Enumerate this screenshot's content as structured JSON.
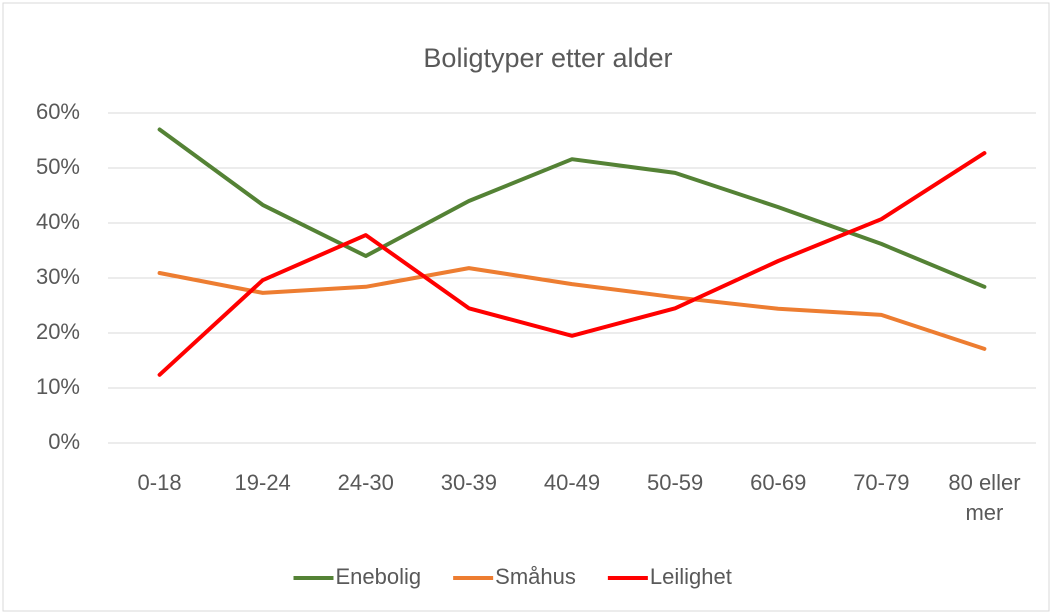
{
  "chart_data": {
    "type": "line",
    "title": "Boligtyper etter alder",
    "categories": [
      "0-18",
      "19-24",
      "24-30",
      "30-39",
      "40-49",
      "50-59",
      "60-69",
      "70-79",
      "80 eller mer"
    ],
    "series": [
      {
        "name": "Enebolig",
        "color": "#548235",
        "values": [
          57,
          43.3,
          34,
          44,
          51.6,
          49.1,
          42.9,
          36.2,
          28.4
        ]
      },
      {
        "name": "Småhus",
        "color": "#ed7d31",
        "values": [
          30.9,
          27.3,
          28.4,
          31.8,
          28.9,
          26.5,
          24.4,
          23.3,
          17.1
        ]
      },
      {
        "name": "Leilighet",
        "color": "#ff0000",
        "values": [
          12.4,
          29.6,
          37.8,
          24.5,
          19.5,
          24.5,
          33.1,
          40.7,
          52.7
        ]
      }
    ],
    "ylim": [
      0,
      60
    ],
    "yticks": [
      {
        "value": 0,
        "label": "0%"
      },
      {
        "value": 10,
        "label": "10%"
      },
      {
        "value": 20,
        "label": "20%"
      },
      {
        "value": 30,
        "label": "30%"
      },
      {
        "value": 40,
        "label": "40%"
      },
      {
        "value": 50,
        "label": "50%"
      },
      {
        "value": 60,
        "label": "60%"
      }
    ],
    "grid": true,
    "legend": "bottom"
  }
}
